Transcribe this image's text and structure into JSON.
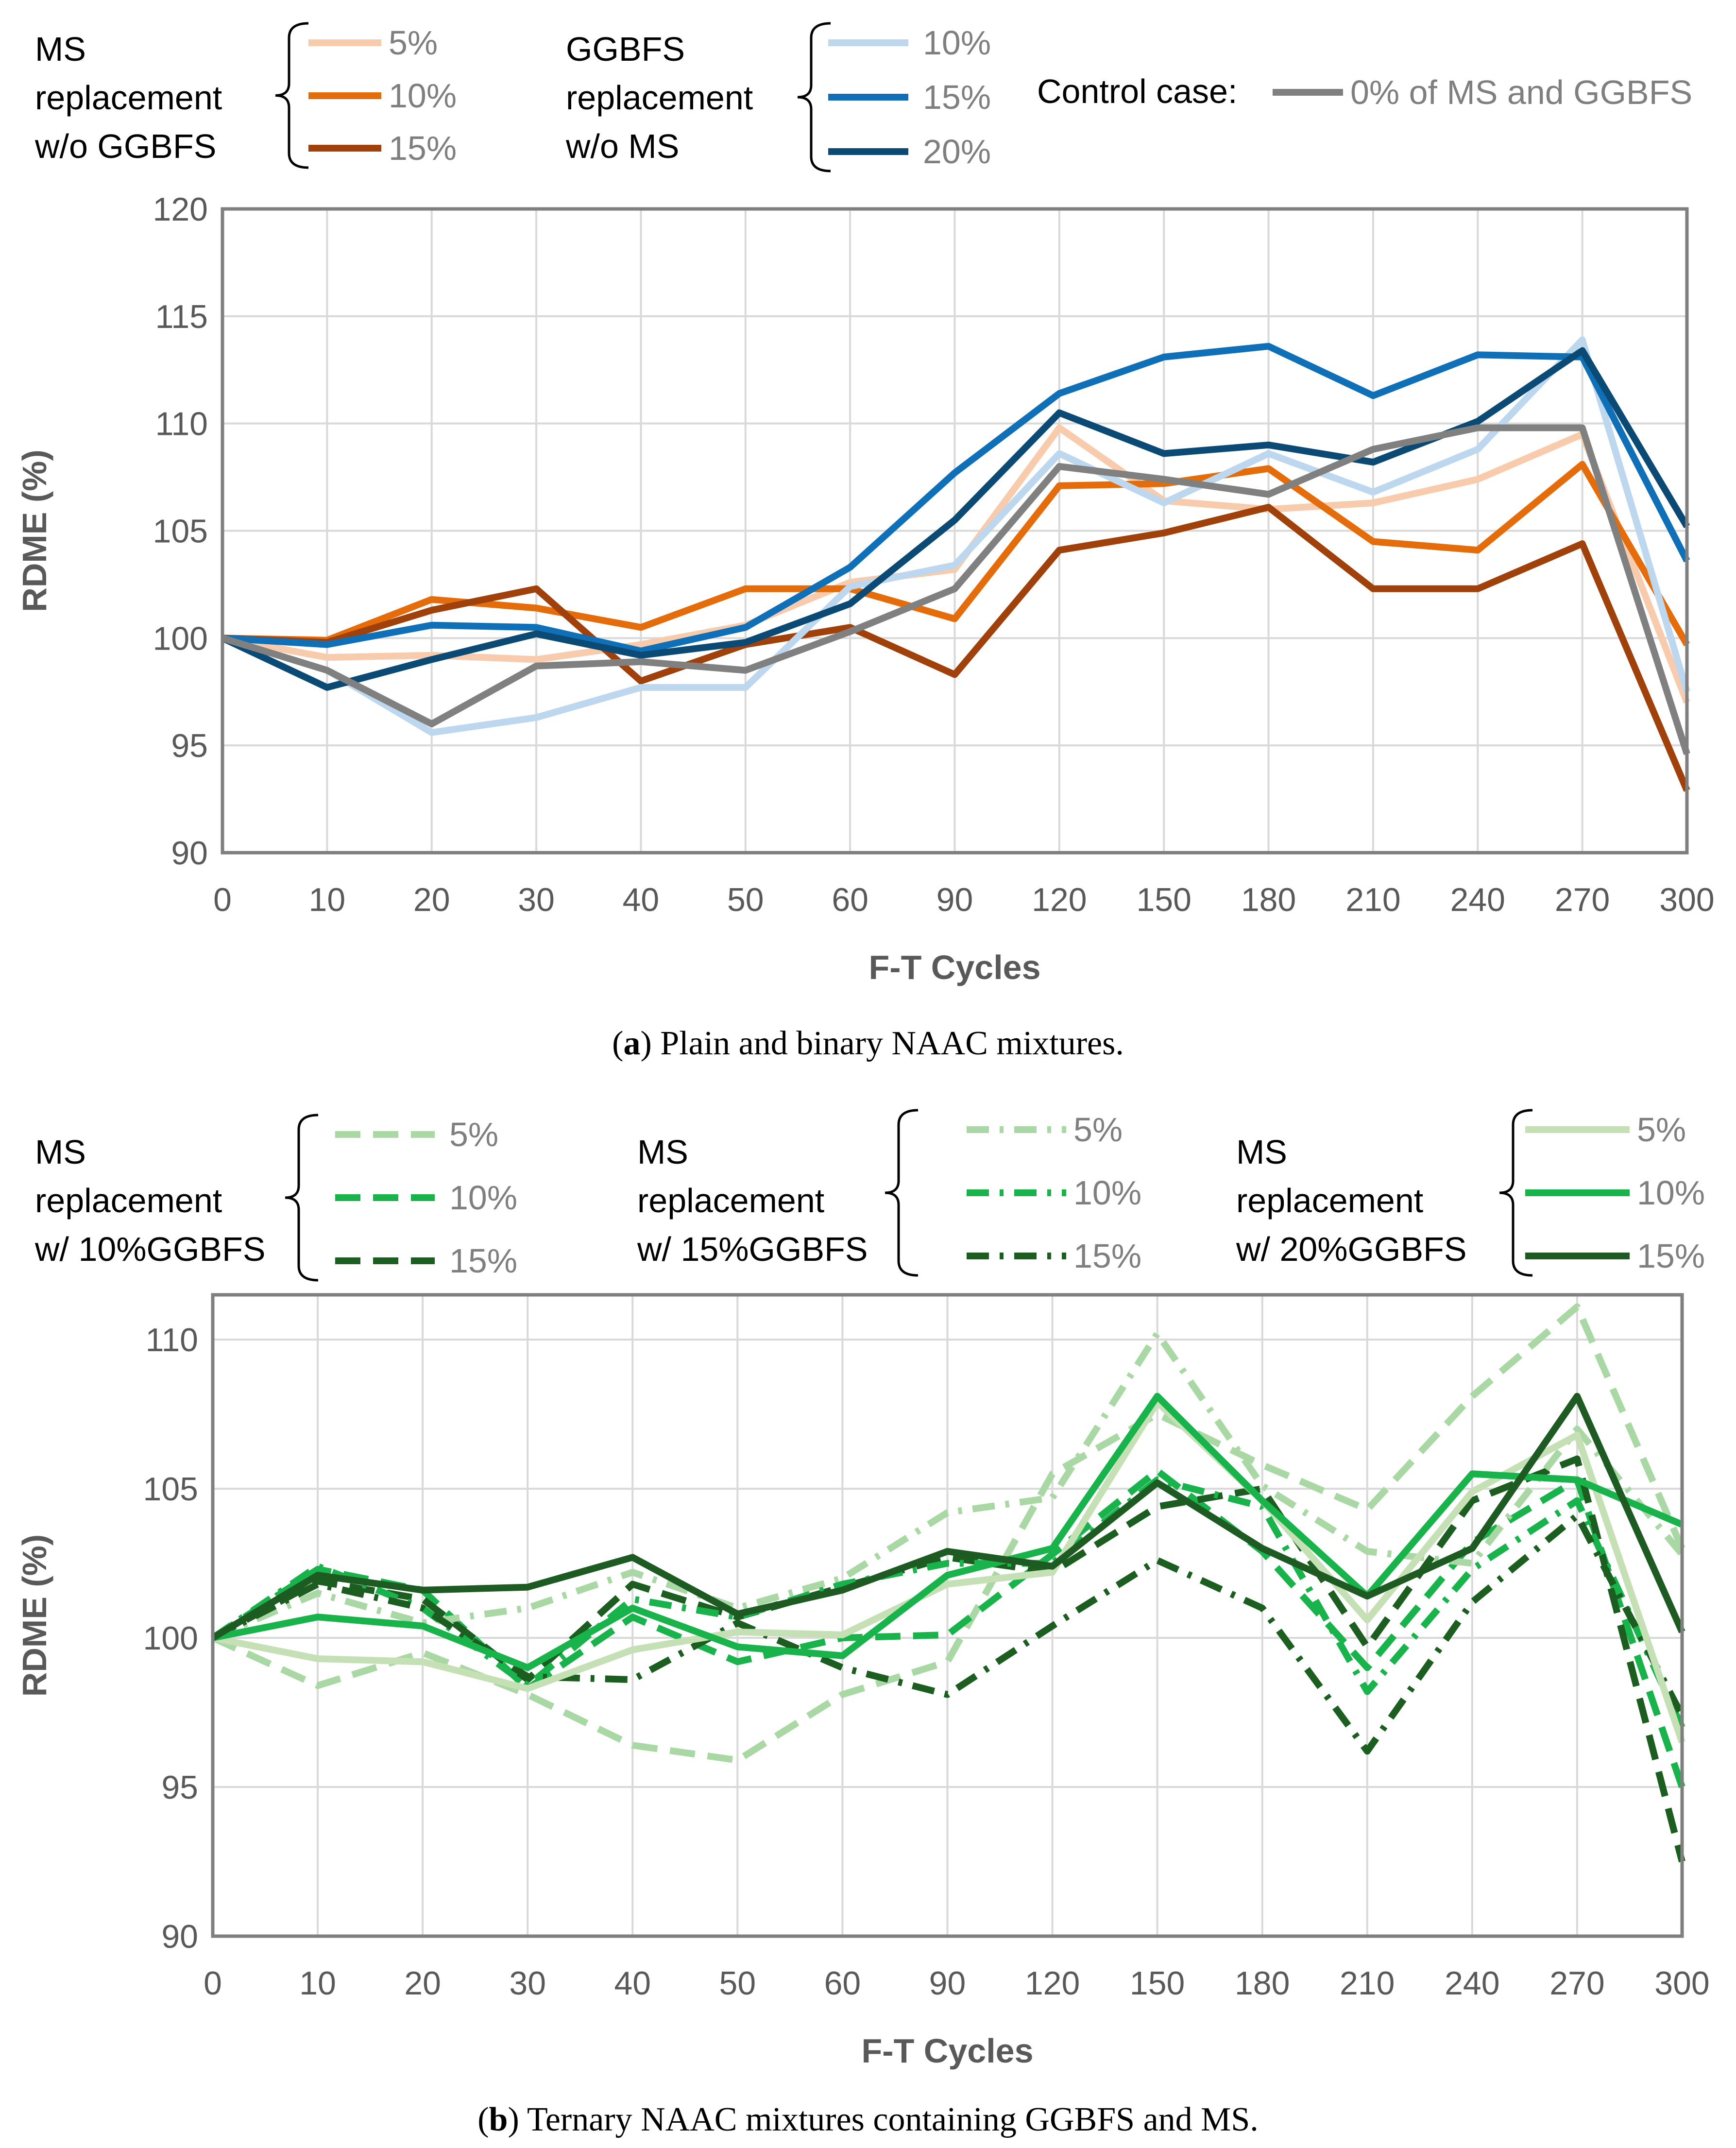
{
  "chart_data": [
    {
      "type": "line",
      "panel": "a",
      "caption_label": "a",
      "caption_text": "Plain and binary NAAC mixtures.",
      "categories": [
        "0",
        "10",
        "20",
        "30",
        "40",
        "50",
        "60",
        "90",
        "120",
        "150",
        "180",
        "210",
        "240",
        "270",
        "300"
      ],
      "xlabel": "F-T Cycles",
      "ylabel": "RDME (%)",
      "ylim": [
        90,
        120
      ],
      "yticks": [
        90,
        95,
        100,
        105,
        110,
        115,
        120
      ],
      "legend_groups": [
        {
          "label_lines": [
            "MS",
            "replacement",
            "w/o GGBFS"
          ],
          "series_names": [
            "5%",
            "10%",
            "15%"
          ]
        },
        {
          "label_lines": [
            "GGBFS",
            "replacement",
            "w/o MS"
          ],
          "series_names": [
            "10%",
            "15%",
            "20%"
          ]
        },
        {
          "label_lines": [
            "Control case:"
          ],
          "series_names": [
            "0% of MS and GGBFS"
          ]
        }
      ],
      "series": [
        {
          "name": "5%",
          "group": "MS replacement w/o GGBFS",
          "color": "#F8CBAD",
          "dash": "solid",
          "values": [
            100,
            99.1,
            99.2,
            99.0,
            99.7,
            100.6,
            102.6,
            103.2,
            109.8,
            106.4,
            106.0,
            106.3,
            107.4,
            109.5,
            97.0
          ]
        },
        {
          "name": "10%",
          "group": "MS replacement w/o GGBFS",
          "color": "#E46C0A",
          "dash": "solid",
          "values": [
            100,
            99.9,
            101.8,
            101.4,
            100.5,
            102.3,
            102.3,
            100.9,
            107.1,
            107.2,
            107.9,
            104.5,
            104.1,
            108.1,
            99.7
          ]
        },
        {
          "name": "15%",
          "group": "MS replacement w/o GGBFS",
          "color": "#A0400A",
          "dash": "solid",
          "values": [
            100,
            99.8,
            101.3,
            102.3,
            98.0,
            99.7,
            100.5,
            98.3,
            104.1,
            104.9,
            106.1,
            102.3,
            102.3,
            104.4,
            92.9
          ]
        },
        {
          "name": "10%",
          "group": "GGBFS replacement w/o MS",
          "color": "#BDD7EE",
          "dash": "solid",
          "values": [
            100,
            98.5,
            95.6,
            96.3,
            97.7,
            97.7,
            102.4,
            103.4,
            108.6,
            106.3,
            108.6,
            106.8,
            108.8,
            113.9,
            97.5
          ]
        },
        {
          "name": "15%",
          "group": "GGBFS replacement w/o MS",
          "color": "#0F70B7",
          "dash": "solid",
          "values": [
            100,
            99.7,
            100.6,
            100.5,
            99.4,
            100.5,
            103.3,
            107.7,
            111.4,
            113.1,
            113.6,
            111.3,
            113.2,
            113.1,
            103.6
          ]
        },
        {
          "name": "20%",
          "group": "GGBFS replacement w/o MS",
          "color": "#0B4A75",
          "dash": "solid",
          "values": [
            100,
            97.7,
            99.0,
            100.2,
            99.2,
            99.8,
            101.6,
            105.5,
            110.5,
            108.6,
            109.0,
            108.2,
            110.1,
            113.4,
            105.2
          ]
        },
        {
          "name": "0% of MS and GGBFS",
          "group": "Control case",
          "color": "#808080",
          "dash": "solid",
          "values": [
            100,
            98.5,
            96.0,
            98.7,
            98.9,
            98.5,
            100.3,
            102.3,
            108.0,
            107.4,
            106.7,
            108.8,
            109.8,
            109.8,
            94.6
          ]
        }
      ]
    },
    {
      "type": "line",
      "panel": "b",
      "caption_label": "b",
      "caption_text": "Ternary NAAC mixtures containing GGBFS and MS.",
      "categories": [
        "0",
        "10",
        "20",
        "30",
        "40",
        "50",
        "60",
        "90",
        "120",
        "150",
        "180",
        "210",
        "240",
        "270",
        "300"
      ],
      "xlabel": "F-T Cycles",
      "ylabel": "RDME (%)",
      "ylim": [
        90,
        111.5
      ],
      "yticks": [
        90,
        95,
        100,
        105,
        110
      ],
      "legend_groups": [
        {
          "label_lines": [
            "MS",
            "replacement",
            "w/ 10%GGBFS"
          ],
          "series_names": [
            "5%",
            "10%",
            "15%"
          ]
        },
        {
          "label_lines": [
            "MS",
            "replacement",
            "w/ 15%GGBFS"
          ],
          "series_names": [
            "5%",
            "10%",
            "15%"
          ]
        },
        {
          "label_lines": [
            "MS",
            "replacement",
            "w/ 20%GGBFS"
          ],
          "series_names": [
            "5%",
            "10%",
            "15%"
          ]
        }
      ],
      "series": [
        {
          "name": "5%",
          "group": "MS replacement w/ 10%GGBFS",
          "color": "#A9D8A4",
          "dash": "dash",
          "values": [
            100,
            98.4,
            99.5,
            98.1,
            96.4,
            95.9,
            98.1,
            99.2,
            105.5,
            107.5,
            105.8,
            104.3,
            108.1,
            111.1,
            103.0
          ]
        },
        {
          "name": "10%",
          "group": "MS replacement w/ 10%GGBFS",
          "color": "#18B34A",
          "dash": "dash",
          "values": [
            100,
            102.3,
            101.6,
            98.3,
            100.7,
            99.2,
            100.0,
            100.1,
            102.8,
            105.6,
            102.9,
            99.0,
            103.2,
            105.3,
            95.0
          ]
        },
        {
          "name": "15%",
          "group": "MS replacement w/ 10%GGBFS",
          "color": "#1B5E20",
          "dash": "dash",
          "values": [
            100,
            101.9,
            101.3,
            98.6,
            101.8,
            100.7,
            101.7,
            102.7,
            102.2,
            104.4,
            105.0,
            99.7,
            104.6,
            106.0,
            92.5
          ]
        },
        {
          "name": "5%",
          "group": "MS replacement w/ 15%GGBFS",
          "color": "#A9D8A4",
          "dash": "dashdot",
          "values": [
            100,
            101.5,
            100.5,
            101.0,
            102.2,
            101.0,
            102.0,
            104.2,
            104.7,
            110.2,
            105.1,
            102.9,
            102.5,
            107.0,
            102.8
          ]
        },
        {
          "name": "10%",
          "group": "MS replacement w/ 15%GGBFS",
          "color": "#18B34A",
          "dash": "dashdot",
          "values": [
            100,
            102.4,
            101.0,
            98.4,
            101.3,
            100.7,
            101.8,
            102.5,
            102.5,
            105.3,
            104.4,
            98.2,
            102.3,
            104.6,
            97.0
          ]
        },
        {
          "name": "15%",
          "group": "MS replacement w/ 15%GGBFS",
          "color": "#1B5E20",
          "dash": "dashdot",
          "values": [
            100,
            101.8,
            101.0,
            98.7,
            98.6,
            100.5,
            99.0,
            98.1,
            100.4,
            102.6,
            101.0,
            96.2,
            101.2,
            104.1,
            97.4
          ]
        },
        {
          "name": "5%",
          "group": "MS replacement w/ 20%GGBFS",
          "color": "#C5E0B4",
          "dash": "solid",
          "values": [
            100,
            99.3,
            99.2,
            98.3,
            99.6,
            100.2,
            100.1,
            101.8,
            102.2,
            107.9,
            104.6,
            100.6,
            104.9,
            106.8,
            96.5
          ]
        },
        {
          "name": "10%",
          "group": "MS replacement w/ 20%GGBFS",
          "color": "#18B34A",
          "dash": "solid",
          "values": [
            100,
            100.7,
            100.4,
            99.0,
            101.0,
            99.7,
            99.4,
            102.1,
            103.0,
            108.1,
            104.6,
            101.4,
            105.5,
            105.3,
            103.8
          ]
        },
        {
          "name": "15%",
          "group": "MS replacement w/ 20%GGBFS",
          "color": "#1E5B22",
          "dash": "solid",
          "values": [
            100,
            102.1,
            101.6,
            101.7,
            102.7,
            100.8,
            101.6,
            102.9,
            102.4,
            105.2,
            103.0,
            101.4,
            103.0,
            108.1,
            100.2
          ]
        }
      ]
    }
  ]
}
